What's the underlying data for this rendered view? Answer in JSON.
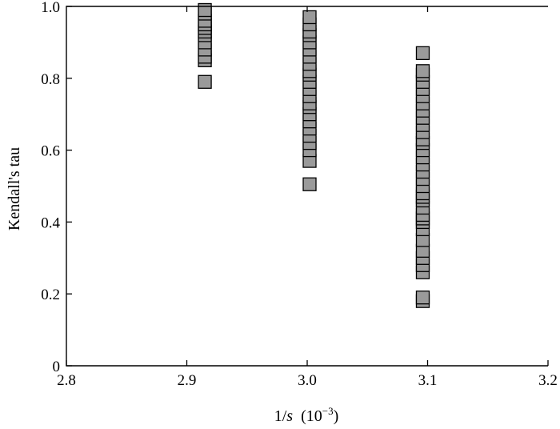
{
  "chart_data": {
    "type": "scatter",
    "xlabel_main": "1/",
    "xlabel_var": "s",
    "xlabel_unit": "(10",
    "xlabel_exp": "−3",
    "xlabel_close": ")",
    "ylabel": "Kendall's tau",
    "xlim": [
      2.8,
      3.2
    ],
    "ylim": [
      0,
      1.0
    ],
    "x_ticks": [
      2.8,
      2.9,
      3.0,
      3.1,
      3.2
    ],
    "x_tick_labels": [
      "2.8",
      "2.9",
      "3.0",
      "3.1",
      "3.2"
    ],
    "y_ticks": [
      0,
      0.2,
      0.4,
      0.6,
      0.8,
      1.0
    ],
    "y_tick_labels": [
      "0",
      "0.2",
      "0.4",
      "0.6",
      "0.8",
      "1.0"
    ],
    "grid": false,
    "marker": "square",
    "marker_color": "#9a9a9a",
    "series": [
      {
        "x": 2.915,
        "values": [
          0.79,
          0.85,
          0.86,
          0.88,
          0.9,
          0.92,
          0.93,
          0.94,
          0.95,
          0.96,
          0.98,
          0.99
        ]
      },
      {
        "x": 3.002,
        "values": [
          0.505,
          0.57,
          0.6,
          0.62,
          0.64,
          0.66,
          0.68,
          0.7,
          0.72,
          0.73,
          0.75,
          0.77,
          0.79,
          0.81,
          0.82,
          0.84,
          0.86,
          0.88,
          0.9,
          0.92,
          0.93,
          0.95,
          0.97
        ]
      },
      {
        "x": 3.096,
        "values": [
          0.18,
          0.19,
          0.26,
          0.28,
          0.3,
          0.32,
          0.35,
          0.38,
          0.4,
          0.41,
          0.42,
          0.44,
          0.46,
          0.47,
          0.48,
          0.5,
          0.52,
          0.54,
          0.56,
          0.58,
          0.6,
          0.62,
          0.63,
          0.65,
          0.67,
          0.69,
          0.71,
          0.73,
          0.75,
          0.77,
          0.79,
          0.81,
          0.82,
          0.87
        ]
      }
    ]
  }
}
